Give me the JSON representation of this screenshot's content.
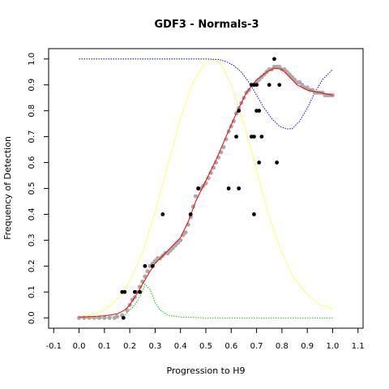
{
  "chart_data": {
    "type": "scatter",
    "title": "GDF3 - Normals-3",
    "xlabel": "Progression to H9",
    "ylabel": "Frequency of Detection",
    "xlim": [
      -0.12,
      1.12
    ],
    "ylim": [
      -0.04,
      1.04
    ],
    "x_ticks": [
      -0.1,
      0.0,
      0.1,
      0.2,
      0.3,
      0.4,
      0.5,
      0.6,
      0.7,
      0.8,
      0.9,
      1.0,
      1.1
    ],
    "x_tick_labels": [
      "-0.1",
      "0.0",
      "0.1",
      "0.2",
      "0.3",
      "0.4",
      "0.5",
      "0.6",
      "0.7",
      "0.8",
      "0.9",
      "1.0",
      "1.1"
    ],
    "y_ticks": [
      0.0,
      0.1,
      0.2,
      0.3,
      0.4,
      0.5,
      0.6,
      0.7,
      0.8,
      0.9,
      1.0
    ],
    "y_tick_labels": [
      "0.0",
      "0.1",
      "0.2",
      "0.3",
      "0.4",
      "0.5",
      "0.6",
      "0.7",
      "0.8",
      "0.9",
      "1.0"
    ],
    "grid": false,
    "colors": {
      "observed": "#000000",
      "smoothed": "#aaaaaa",
      "fit": "#ff0000",
      "blue_curve": "#0000ff",
      "yellow_curve": "#ffff66",
      "green_curve": "#00cc00"
    },
    "observed_points": [
      [
        0.17,
        0.1
      ],
      [
        0.18,
        0.1
      ],
      [
        0.175,
        0.0
      ],
      [
        0.22,
        0.1
      ],
      [
        0.24,
        0.1
      ],
      [
        0.26,
        0.2
      ],
      [
        0.29,
        0.2
      ],
      [
        0.33,
        0.4
      ],
      [
        0.44,
        0.4
      ],
      [
        0.47,
        0.5
      ],
      [
        0.59,
        0.5
      ],
      [
        0.63,
        0.5
      ],
      [
        0.62,
        0.7
      ],
      [
        0.63,
        0.8
      ],
      [
        0.68,
        0.7
      ],
      [
        0.68,
        0.9
      ],
      [
        0.69,
        0.9
      ],
      [
        0.7,
        0.9
      ],
      [
        0.69,
        0.7
      ],
      [
        0.7,
        0.8
      ],
      [
        0.71,
        0.8
      ],
      [
        0.71,
        0.6
      ],
      [
        0.72,
        0.7
      ],
      [
        0.69,
        0.4
      ],
      [
        0.75,
        0.9
      ],
      [
        0.77,
        1.0
      ],
      [
        0.78,
        0.6
      ],
      [
        0.79,
        0.9
      ]
    ],
    "smoothed_points": [
      [
        0.0,
        0.0
      ],
      [
        0.02,
        0.0
      ],
      [
        0.04,
        0.0
      ],
      [
        0.06,
        0.0
      ],
      [
        0.08,
        0.0
      ],
      [
        0.1,
        0.0
      ],
      [
        0.12,
        0.0
      ],
      [
        0.14,
        0.0
      ],
      [
        0.15,
        0.005
      ],
      [
        0.17,
        0.01
      ],
      [
        0.19,
        0.03
      ],
      [
        0.2,
        0.05
      ],
      [
        0.21,
        0.07
      ],
      [
        0.22,
        0.08
      ],
      [
        0.23,
        0.1
      ],
      [
        0.24,
        0.12
      ],
      [
        0.25,
        0.14
      ],
      [
        0.26,
        0.16
      ],
      [
        0.27,
        0.18
      ],
      [
        0.28,
        0.2
      ],
      [
        0.29,
        0.21
      ],
      [
        0.3,
        0.22
      ],
      [
        0.31,
        0.23
      ],
      [
        0.32,
        0.23
      ],
      [
        0.33,
        0.24
      ],
      [
        0.34,
        0.25
      ],
      [
        0.35,
        0.25
      ],
      [
        0.36,
        0.26
      ],
      [
        0.37,
        0.27
      ],
      [
        0.38,
        0.28
      ],
      [
        0.39,
        0.29
      ],
      [
        0.4,
        0.3
      ],
      [
        0.41,
        0.32
      ],
      [
        0.42,
        0.33
      ],
      [
        0.43,
        0.36
      ],
      [
        0.44,
        0.39
      ],
      [
        0.45,
        0.43
      ],
      [
        0.46,
        0.47
      ],
      [
        0.47,
        0.5
      ],
      [
        0.48,
        0.5
      ],
      [
        0.49,
        0.51
      ],
      [
        0.5,
        0.52
      ],
      [
        0.51,
        0.54
      ],
      [
        0.52,
        0.56
      ],
      [
        0.53,
        0.58
      ],
      [
        0.54,
        0.6
      ],
      [
        0.55,
        0.62
      ],
      [
        0.56,
        0.64
      ],
      [
        0.57,
        0.66
      ],
      [
        0.58,
        0.69
      ],
      [
        0.59,
        0.72
      ],
      [
        0.6,
        0.74
      ],
      [
        0.61,
        0.76
      ],
      [
        0.62,
        0.79
      ],
      [
        0.63,
        0.81
      ],
      [
        0.64,
        0.83
      ],
      [
        0.65,
        0.85
      ],
      [
        0.66,
        0.87
      ],
      [
        0.67,
        0.88
      ],
      [
        0.68,
        0.9
      ],
      [
        0.69,
        0.9
      ],
      [
        0.7,
        0.91
      ],
      [
        0.71,
        0.92
      ],
      [
        0.72,
        0.93
      ],
      [
        0.73,
        0.94
      ],
      [
        0.74,
        0.95
      ],
      [
        0.75,
        0.96
      ],
      [
        0.76,
        0.96
      ],
      [
        0.77,
        0.97
      ],
      [
        0.78,
        0.97
      ],
      [
        0.79,
        0.97
      ],
      [
        0.8,
        0.96
      ],
      [
        0.81,
        0.96
      ],
      [
        0.82,
        0.95
      ],
      [
        0.83,
        0.94
      ],
      [
        0.84,
        0.93
      ],
      [
        0.85,
        0.92
      ],
      [
        0.86,
        0.91
      ],
      [
        0.87,
        0.91
      ],
      [
        0.88,
        0.9
      ],
      [
        0.89,
        0.89
      ],
      [
        0.9,
        0.89
      ],
      [
        0.91,
        0.88
      ],
      [
        0.92,
        0.88
      ],
      [
        0.93,
        0.87
      ],
      [
        0.94,
        0.87
      ],
      [
        0.95,
        0.87
      ],
      [
        0.96,
        0.87
      ],
      [
        0.97,
        0.86
      ],
      [
        0.98,
        0.86
      ],
      [
        0.99,
        0.86
      ],
      [
        1.0,
        0.86
      ]
    ],
    "fit_line": [
      [
        0.0,
        0.003
      ],
      [
        0.05,
        0.005
      ],
      [
        0.1,
        0.008
      ],
      [
        0.15,
        0.015
      ],
      [
        0.18,
        0.03
      ],
      [
        0.2,
        0.05
      ],
      [
        0.22,
        0.08
      ],
      [
        0.25,
        0.13
      ],
      [
        0.28,
        0.18
      ],
      [
        0.3,
        0.21
      ],
      [
        0.33,
        0.24
      ],
      [
        0.36,
        0.27
      ],
      [
        0.4,
        0.31
      ],
      [
        0.43,
        0.37
      ],
      [
        0.46,
        0.45
      ],
      [
        0.5,
        0.53
      ],
      [
        0.54,
        0.61
      ],
      [
        0.58,
        0.7
      ],
      [
        0.62,
        0.79
      ],
      [
        0.66,
        0.87
      ],
      [
        0.7,
        0.92
      ],
      [
        0.74,
        0.95
      ],
      [
        0.77,
        0.965
      ],
      [
        0.8,
        0.96
      ],
      [
        0.83,
        0.93
      ],
      [
        0.86,
        0.9
      ],
      [
        0.9,
        0.88
      ],
      [
        0.95,
        0.87
      ],
      [
        1.0,
        0.86
      ]
    ],
    "blue_curve": [
      [
        0.0,
        1.0
      ],
      [
        0.1,
        1.0
      ],
      [
        0.2,
        1.0
      ],
      [
        0.3,
        1.0
      ],
      [
        0.4,
        1.0
      ],
      [
        0.5,
        1.0
      ],
      [
        0.55,
        0.998
      ],
      [
        0.58,
        0.99
      ],
      [
        0.61,
        0.975
      ],
      [
        0.64,
        0.95
      ],
      [
        0.67,
        0.91
      ],
      [
        0.7,
        0.86
      ],
      [
        0.73,
        0.81
      ],
      [
        0.76,
        0.77
      ],
      [
        0.79,
        0.74
      ],
      [
        0.82,
        0.73
      ],
      [
        0.84,
        0.73
      ],
      [
        0.87,
        0.76
      ],
      [
        0.9,
        0.81
      ],
      [
        0.93,
        0.87
      ],
      [
        0.96,
        0.92
      ],
      [
        1.0,
        0.96
      ]
    ],
    "yellow_curve": [
      [
        0.0,
        0.005
      ],
      [
        0.05,
        0.012
      ],
      [
        0.1,
        0.03
      ],
      [
        0.15,
        0.07
      ],
      [
        0.2,
        0.14
      ],
      [
        0.25,
        0.25
      ],
      [
        0.3,
        0.41
      ],
      [
        0.35,
        0.59
      ],
      [
        0.4,
        0.77
      ],
      [
        0.45,
        0.91
      ],
      [
        0.5,
        0.99
      ],
      [
        0.53,
        1.0
      ],
      [
        0.56,
        0.98
      ],
      [
        0.6,
        0.9
      ],
      [
        0.65,
        0.75
      ],
      [
        0.7,
        0.57
      ],
      [
        0.75,
        0.39
      ],
      [
        0.8,
        0.25
      ],
      [
        0.85,
        0.15
      ],
      [
        0.9,
        0.09
      ],
      [
        0.95,
        0.05
      ],
      [
        1.0,
        0.035
      ]
    ],
    "green_curve": [
      [
        0.0,
        0.0
      ],
      [
        0.1,
        0.0
      ],
      [
        0.18,
        0.01
      ],
      [
        0.22,
        0.05
      ],
      [
        0.25,
        0.1
      ],
      [
        0.26,
        0.13
      ],
      [
        0.28,
        0.11
      ],
      [
        0.3,
        0.06
      ],
      [
        0.32,
        0.03
      ],
      [
        0.35,
        0.01
      ],
      [
        0.4,
        0.003
      ],
      [
        0.5,
        0.0
      ],
      [
        0.6,
        0.0
      ],
      [
        0.8,
        0.0
      ],
      [
        1.0,
        0.0
      ]
    ]
  }
}
